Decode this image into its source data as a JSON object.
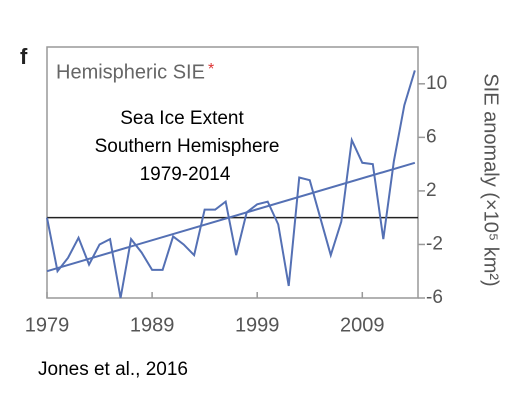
{
  "chart_data": {
    "type": "line",
    "panel_label": "f",
    "title": "Hemispheric SIE",
    "title_mark": "*",
    "annotation_lines": [
      "Sea Ice Extent",
      "Southern Hemisphere",
      "1979-2014"
    ],
    "y_label": "SIE anomaly (×10⁵ km²)",
    "source": "Jones et al., 2016",
    "x": [
      1979,
      1980,
      1981,
      1982,
      1983,
      1984,
      1985,
      1986,
      1987,
      1988,
      1989,
      1990,
      1991,
      1992,
      1993,
      1994,
      1995,
      1996,
      1997,
      1998,
      1999,
      2000,
      2001,
      2002,
      2003,
      2004,
      2005,
      2006,
      2007,
      2008,
      2009,
      2010,
      2011,
      2012,
      2013,
      2014
    ],
    "series": [
      {
        "color": "#5470b4",
        "values": [
          0,
          -4.0,
          -3.0,
          -1.5,
          -3.5,
          -2.0,
          -1.6,
          -6.0,
          -1.6,
          -2.6,
          -3.9,
          -3.9,
          -1.4,
          -2.0,
          -2.8,
          0.6,
          0.6,
          1.2,
          -2.8,
          0.4,
          1.0,
          1.2,
          -0.5,
          -5.1,
          3.0,
          2.8,
          0,
          -2.8,
          -0.3,
          5.8,
          4.1,
          4.0,
          -1.6,
          4.2,
          8.4,
          11.0
        ]
      },
      {
        "color": "#5470b4",
        "x": [
          1979,
          2014
        ],
        "values": [
          -4.0,
          4.1
        ]
      }
    ],
    "hline": 0,
    "hline_color": "#222222",
    "xlim": [
      1979,
      2014.3
    ],
    "ylim": [
      -6,
      12.75
    ],
    "xticks": [
      1979,
      1989,
      1999,
      2009
    ],
    "yticks": [
      10,
      6,
      2,
      -2,
      -6
    ]
  }
}
